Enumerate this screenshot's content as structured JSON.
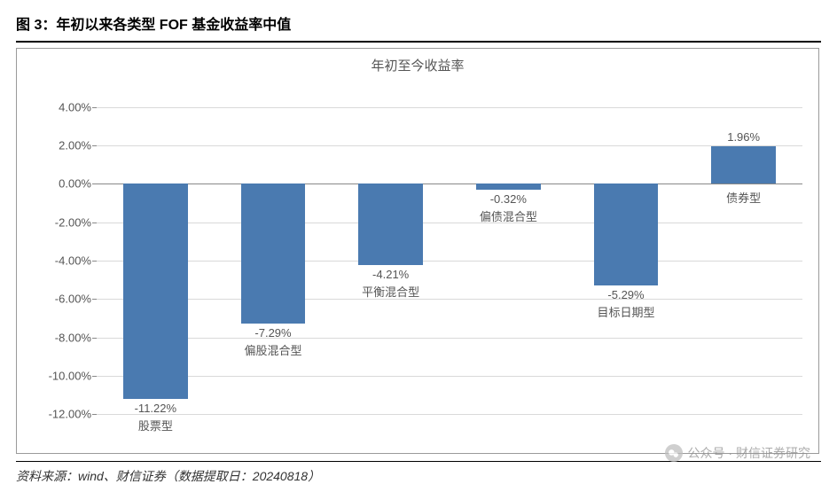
{
  "figure_label": "图 3：年初以来各类型 FOF 基金收益率中值",
  "chart": {
    "type": "bar",
    "title": "年初至今收益率",
    "categories": [
      "股票型",
      "偏股混合型",
      "平衡混合型",
      "偏债混合型",
      "目标日期型",
      "债券型"
    ],
    "values": [
      -11.22,
      -7.29,
      -4.21,
      -0.32,
      -5.29,
      1.96
    ],
    "value_labels": [
      "-11.22%",
      "-7.29%",
      "-4.21%",
      "-0.32%",
      "-5.29%",
      "1.96%"
    ],
    "bar_color": "#4a7ab0",
    "background_color": "#ffffff",
    "grid_color": "#d9d9d9",
    "axis_color": "#888888",
    "text_color": "#555555",
    "ylim": [
      -13,
      5
    ],
    "yticks": [
      4,
      2,
      0,
      -2,
      -4,
      -6,
      -8,
      -10,
      -12
    ],
    "ytick_labels": [
      "4.00%",
      "2.00%",
      "0.00%",
      "-2.00%",
      "-4.00%",
      "-6.00%",
      "-8.00%",
      "-10.00%",
      "-12.00%"
    ],
    "bar_width_ratio": 0.55,
    "title_fontsize": 15,
    "label_fontsize": 13,
    "border_color": "#9a9a9a"
  },
  "source": "资料来源：wind、财信证券（数据提取日：20240818）",
  "watermark": "公众号 · 财信证券研究"
}
